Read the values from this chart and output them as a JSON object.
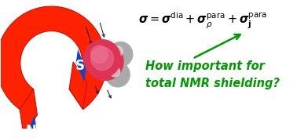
{
  "bg_color": "#ffffff",
  "magnet_color": "#ff2200",
  "magnet_outline": "#cc1100",
  "pole_color": "#1144cc",
  "pole_S_label": "S",
  "pole_N_label": "N",
  "oxygen_color": "#dd3355",
  "oxygen_highlight": "#ee7799",
  "hydrogen_color": "#aaaaaa",
  "hydrogen_highlight": "#dddddd",
  "arrow_color": "#111111",
  "green_color": "#009900",
  "formula_str": "$\\boldsymbol{\\sigma} = \\boldsymbol{\\sigma}^\\mathrm{dia} + \\boldsymbol{\\sigma}_\\rho^\\mathrm{para} + \\boldsymbol{\\sigma}_{\\mathbf{j}}^\\mathrm{para}$",
  "question_line1": "How important for",
  "question_line2": "total NMR shielding?",
  "formula_fontsize": 10.5,
  "question_fontsize": 10.5
}
